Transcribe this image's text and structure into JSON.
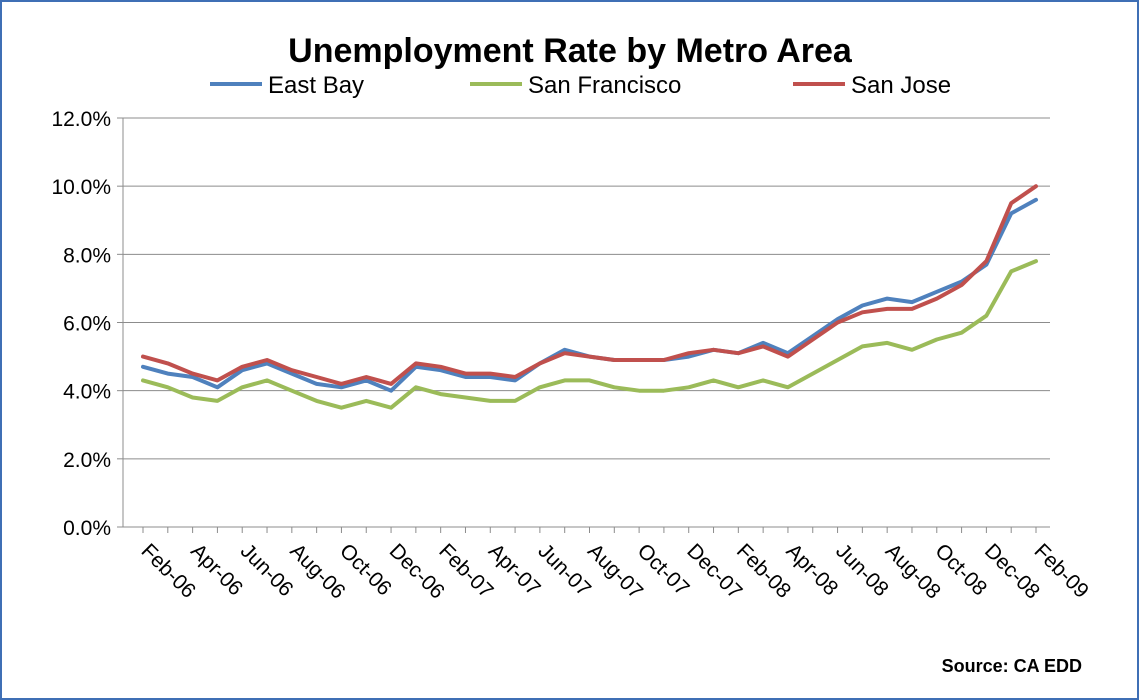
{
  "chart_data": {
    "type": "line",
    "title": "Unemployment Rate by Metro Area",
    "source": "Source: CA EDD",
    "legend_position": "top",
    "grid": true,
    "ylim": [
      0,
      12
    ],
    "y_ticks": [
      0,
      2,
      4,
      6,
      8,
      10,
      12
    ],
    "y_tick_labels": [
      "0.0%",
      "2.0%",
      "4.0%",
      "6.0%",
      "8.0%",
      "10.0%",
      "12.0%"
    ],
    "x": [
      "Feb-06",
      "Mar-06",
      "Apr-06",
      "May-06",
      "Jun-06",
      "Jul-06",
      "Aug-06",
      "Sep-06",
      "Oct-06",
      "Nov-06",
      "Dec-06",
      "Jan-07",
      "Feb-07",
      "Mar-07",
      "Apr-07",
      "May-07",
      "Jun-07",
      "Jul-07",
      "Aug-07",
      "Sep-07",
      "Oct-07",
      "Nov-07",
      "Dec-07",
      "Jan-08",
      "Feb-08",
      "Mar-08",
      "Apr-08",
      "May-08",
      "Jun-08",
      "Jul-08",
      "Aug-08",
      "Sep-08",
      "Oct-08",
      "Nov-08",
      "Dec-08",
      "Jan-09",
      "Feb-09"
    ],
    "x_tick_labels": [
      "Feb-06",
      "Apr-06",
      "Jun-06",
      "Aug-06",
      "Oct-06",
      "Dec-06",
      "Feb-07",
      "Apr-07",
      "Jun-07",
      "Aug-07",
      "Oct-07",
      "Dec-07",
      "Feb-08",
      "Apr-08",
      "Jun-08",
      "Aug-08",
      "Oct-08",
      "Dec-08",
      "Feb-09"
    ],
    "series": [
      {
        "name": "East Bay",
        "color": "#4F81BD",
        "values": [
          4.7,
          4.5,
          4.4,
          4.1,
          4.6,
          4.8,
          4.5,
          4.2,
          4.1,
          4.3,
          4.0,
          4.7,
          4.6,
          4.4,
          4.4,
          4.3,
          4.8,
          5.2,
          5.0,
          4.9,
          4.9,
          4.9,
          5.0,
          5.2,
          5.1,
          5.4,
          5.1,
          5.6,
          6.1,
          6.5,
          6.7,
          6.6,
          6.9,
          7.2,
          7.7,
          9.2,
          9.6
        ]
      },
      {
        "name": "San Francisco",
        "color": "#9BBB59",
        "values": [
          4.3,
          4.1,
          3.8,
          3.7,
          4.1,
          4.3,
          4.0,
          3.7,
          3.5,
          3.7,
          3.5,
          4.1,
          3.9,
          3.8,
          3.7,
          3.7,
          4.1,
          4.3,
          4.3,
          4.1,
          4.0,
          4.0,
          4.1,
          4.3,
          4.1,
          4.3,
          4.1,
          4.5,
          4.9,
          5.3,
          5.4,
          5.2,
          5.5,
          5.7,
          6.2,
          7.5,
          7.8
        ]
      },
      {
        "name": "San Jose",
        "color": "#C0504D",
        "values": [
          5.0,
          4.8,
          4.5,
          4.3,
          4.7,
          4.9,
          4.6,
          4.4,
          4.2,
          4.4,
          4.2,
          4.8,
          4.7,
          4.5,
          4.5,
          4.4,
          4.8,
          5.1,
          5.0,
          4.9,
          4.9,
          4.9,
          5.1,
          5.2,
          5.1,
          5.3,
          5.0,
          5.5,
          6.0,
          6.3,
          6.4,
          6.4,
          6.7,
          7.1,
          7.8,
          9.5,
          10.0
        ]
      }
    ]
  }
}
